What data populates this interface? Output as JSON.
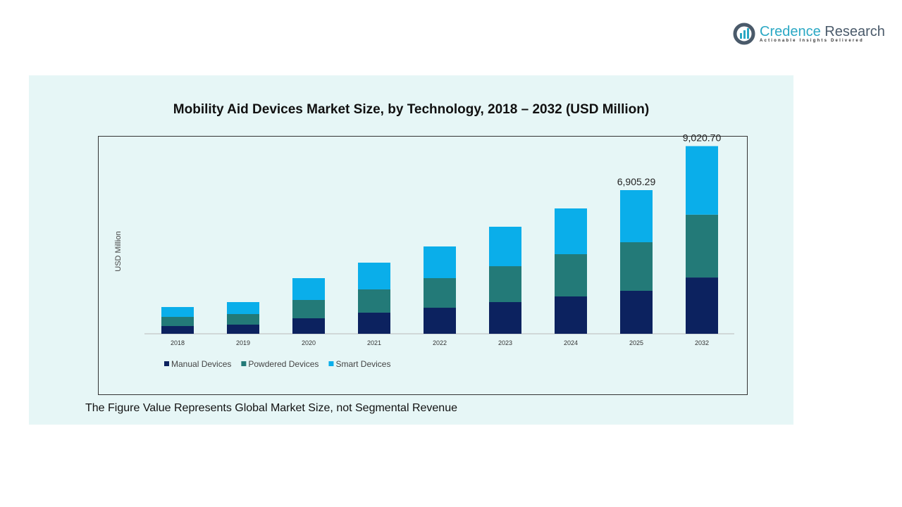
{
  "logo": {
    "name_a": "Credence",
    "name_b": " Research",
    "tagline": "Actionable Insights Delivered"
  },
  "footer": "The Figure Value Represents Global Market Size, not Segmental Revenue",
  "colors": {
    "manual": "#0c225f",
    "powdered": "#237a78",
    "smart": "#0aaeea",
    "panel": "#e6f6f6"
  },
  "chart_data": {
    "type": "bar",
    "stacked": true,
    "title": "Mobility Aid Devices Market Size, by Technology, 2018 – 2032 (USD Million)",
    "ylabel": "USD Million",
    "xlabel": "",
    "categories": [
      "2018",
      "2019",
      "2020",
      "2021",
      "2022",
      "2023",
      "2024",
      "2025",
      "2032"
    ],
    "series": [
      {
        "name": "Manual Devices",
        "values": [
          372,
          440,
          745,
          1016,
          1252,
          1523,
          1794,
          2065,
          2706.2
        ]
      },
      {
        "name": "Powdered Devices",
        "values": [
          440,
          508,
          880,
          1117,
          1422,
          1726,
          2031,
          2336,
          3019.9
        ]
      },
      {
        "name": "Smart Devices",
        "values": [
          474,
          575,
          1049,
          1286,
          1523,
          1896,
          2200,
          2504.29,
          3294.6
        ]
      }
    ],
    "data_labels": [
      {
        "category": "2025",
        "text": "6,905.29"
      },
      {
        "category": "2032",
        "text": "9,020.70"
      }
    ],
    "legend": "bottom-left",
    "grid": false
  }
}
